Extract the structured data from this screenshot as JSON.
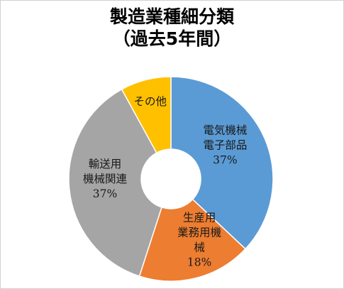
{
  "chart_data": {
    "type": "pie",
    "title_lines": [
      "製造業種細分類",
      "（過去5年間）"
    ],
    "slices": [
      {
        "label_lines": [
          "電気機械",
          "電子部品",
          "37%"
        ],
        "value": 37,
        "color": "#5b9bd5"
      },
      {
        "label_lines": [
          "生産用",
          "業務用機",
          "械",
          "18%"
        ],
        "value": 18,
        "color": "#ed7d31"
      },
      {
        "label_lines": [
          "輸送用",
          "機械関連",
          "37%"
        ],
        "value": 37,
        "color": "#a5a5a5"
      },
      {
        "label_lines": [
          "その他"
        ],
        "value": 8,
        "color": "#ffc000"
      }
    ],
    "legend": "none"
  }
}
